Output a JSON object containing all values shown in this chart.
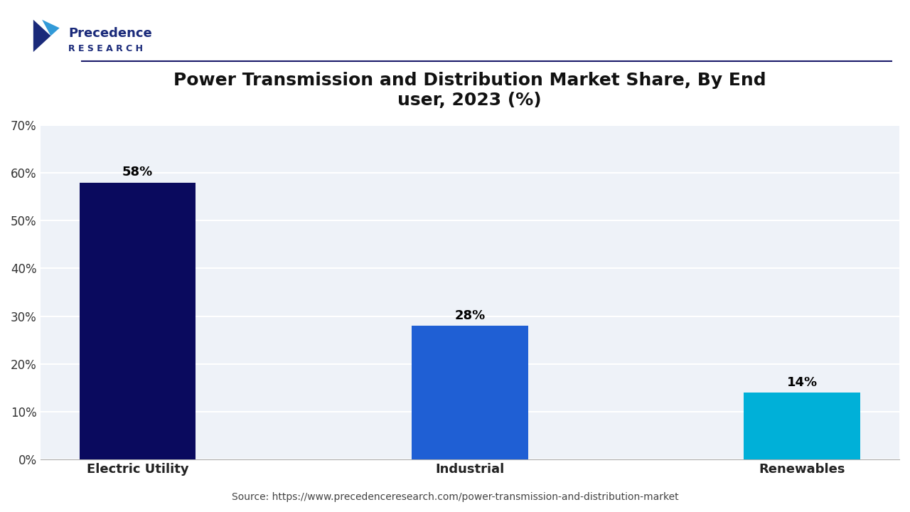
{
  "title": "Power Transmission and Distribution Market Share, By End\nuser, 2023 (%)",
  "categories": [
    "Electric Utility",
    "Industrial",
    "Renewables"
  ],
  "values": [
    58,
    28,
    14
  ],
  "bar_colors": [
    "#0a0a5e",
    "#1f5fd4",
    "#00b0d8"
  ],
  "bar_labels": [
    "58%",
    "28%",
    "14%"
  ],
  "ylim": [
    0,
    70
  ],
  "yticks": [
    0,
    10,
    20,
    30,
    40,
    50,
    60,
    70
  ],
  "ytick_labels": [
    "0%",
    "10%",
    "20%",
    "30%",
    "40%",
    "50%",
    "60%",
    "70%"
  ],
  "background_color": "#ffffff",
  "plot_bg_color": "#eef2f8",
  "grid_color": "#ffffff",
  "source_text": "Source: https://www.precedenceresearch.com/power-transmission-and-distribution-market",
  "title_fontsize": 18,
  "label_fontsize": 13,
  "tick_fontsize": 12,
  "source_fontsize": 10,
  "bar_width": 0.35,
  "logo_text_line1": "Precedence",
  "logo_text_line2": "R E S E A R C H",
  "logo_color": "#1a2a7a",
  "logo_accent": "#1b8fd4"
}
